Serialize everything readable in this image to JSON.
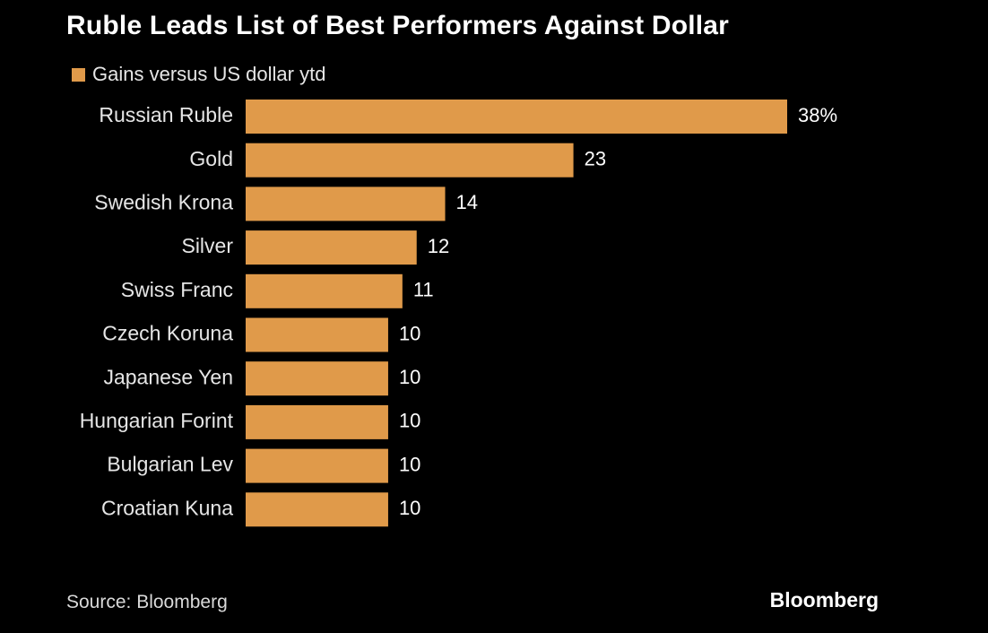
{
  "chart_data": {
    "type": "bar",
    "orientation": "horizontal",
    "title": "Ruble Leads List of Best Performers Against Dollar",
    "legend": "top-left",
    "categories": [
      "Russian Ruble",
      "Gold",
      "Swedish Krona",
      "Silver",
      "Swiss Franc",
      "Czech Koruna",
      "Japanese Yen",
      "Hungarian Forint",
      "Bulgarian Lev",
      "Croatian Kuna"
    ],
    "series": [
      {
        "name": "Gains versus US dollar ytd",
        "values": [
          38,
          23,
          14,
          12,
          11,
          10,
          10,
          10,
          10,
          10
        ],
        "value_labels": [
          "38%",
          "23",
          "14",
          "12",
          "11",
          "10",
          "10",
          "10",
          "10",
          "10"
        ]
      }
    ],
    "xlim": [
      0,
      38
    ],
    "grid": false,
    "colors": {
      "bar": "#e09a4a",
      "background": "#000000"
    },
    "source": "Source: Bloomberg",
    "brand": "Bloomberg"
  }
}
